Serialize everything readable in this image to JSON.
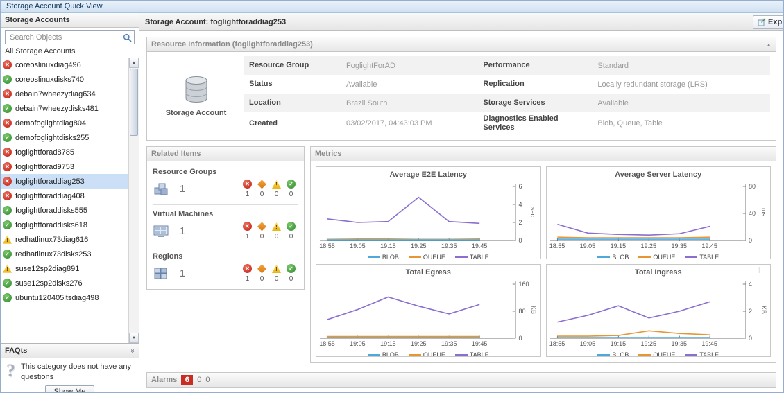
{
  "window": {
    "title": "Storage Account Quick View"
  },
  "sidebar": {
    "title": "Storage Accounts",
    "search": {
      "placeholder": "Search Objects"
    },
    "list_header": "All Storage Accounts",
    "accounts": [
      {
        "name": "coreoslinuxdiag496",
        "status": "error"
      },
      {
        "name": "coreoslinuxdisks740",
        "status": "ok"
      },
      {
        "name": "debain7wheezydiag634",
        "status": "error"
      },
      {
        "name": "debain7wheezydisks481",
        "status": "ok"
      },
      {
        "name": "demofoglightdiag804",
        "status": "error"
      },
      {
        "name": "demofoglightdisks255",
        "status": "ok"
      },
      {
        "name": "foglightforad8785",
        "status": "error"
      },
      {
        "name": "foglightforad9753",
        "status": "error"
      },
      {
        "name": "foglightforaddiag253",
        "status": "error",
        "selected": true
      },
      {
        "name": "foglightforaddiag408",
        "status": "error"
      },
      {
        "name": "foglightforaddisks555",
        "status": "ok"
      },
      {
        "name": "foglightforaddisks618",
        "status": "ok"
      },
      {
        "name": "redhatlinux73diag616",
        "status": "warn"
      },
      {
        "name": "redhatlinux73disks253",
        "status": "ok"
      },
      {
        "name": "suse12sp2diag891",
        "status": "warn"
      },
      {
        "name": "suse12sp2disks276",
        "status": "ok"
      },
      {
        "name": "ubuntu120405ltsdiag498",
        "status": "ok"
      }
    ],
    "faqts": {
      "title": "FAQts",
      "message": "This category does not have any questions",
      "show_me_button": "Show Me"
    }
  },
  "main": {
    "title": "Storage Account: foglightforaddiag253",
    "explore_button": "Exp",
    "resource_info": {
      "title": "Resource Information (foglightforaddiag253)",
      "icon_label": "Storage Account",
      "rows": [
        {
          "label1": "Resource Group",
          "value1": "FoglightForAD",
          "label2": "Performance",
          "value2": "Standard"
        },
        {
          "label1": "Status",
          "value1": "Available",
          "label2": "Replication",
          "value2": "Locally redundant storage (LRS)"
        },
        {
          "label1": "Location",
          "value1": "Brazil South",
          "label2": "Storage Services",
          "value2": "Available"
        },
        {
          "label1": "Created",
          "value1": "03/02/2017, 04:43:03 PM",
          "label2": "Diagnostics Enabled Services",
          "value2": "Blob, Queue, Table"
        }
      ]
    },
    "related_items": {
      "title": "Related Items",
      "severity_order": [
        "fatal",
        "critical",
        "warning",
        "normal"
      ],
      "groups": [
        {
          "label": "Resource Groups",
          "icon": "resource-group",
          "count": "1",
          "status_counts": [
            "1",
            "0",
            "0",
            "0"
          ]
        },
        {
          "label": "Virtual Machines",
          "icon": "virtual-machine",
          "count": "1",
          "status_counts": [
            "1",
            "0",
            "0",
            "0"
          ]
        },
        {
          "label": "Regions",
          "icon": "region",
          "count": "1",
          "status_counts": [
            "1",
            "0",
            "0",
            "0"
          ]
        }
      ]
    },
    "metrics_title": "Metrics",
    "alarms": {
      "title": "Alarms",
      "counts": [
        {
          "value": "6",
          "severity": "fatal"
        },
        {
          "value": "0",
          "severity": "none"
        },
        {
          "value": "0",
          "severity": "none"
        }
      ]
    }
  },
  "colors": {
    "blob": "#4fa8dc",
    "queue": "#e89632",
    "table": "#8a6fd0",
    "selected_row": "#cbe0f7",
    "alarm_badge": "#c92c23"
  },
  "chart_data": [
    {
      "type": "line",
      "title": "Average E2E Latency",
      "ylabel": "sec",
      "ylim": [
        0,
        6
      ],
      "yticks": [
        0,
        2,
        4,
        6
      ],
      "x": [
        "18:55",
        "19:05",
        "19:15",
        "19:25",
        "19:35",
        "19:45"
      ],
      "series": [
        {
          "name": "BLOB",
          "color": "#4fa8dc",
          "values": [
            0.08,
            0.08,
            0.08,
            0.08,
            0.08,
            0.08
          ]
        },
        {
          "name": "QUEUE",
          "color": "#e89632",
          "values": [
            0.25,
            0.22,
            0.22,
            0.25,
            0.25,
            0.22
          ]
        },
        {
          "name": "TABLE",
          "color": "#8a6fd0",
          "values": [
            2.4,
            2.0,
            2.1,
            4.8,
            2.1,
            1.9
          ]
        }
      ],
      "legend_position": "bottom",
      "grid": false
    },
    {
      "type": "line",
      "title": "Average Server Latency",
      "ylabel": "ms",
      "ylim": [
        0,
        80
      ],
      "yticks": [
        0,
        40,
        80
      ],
      "x": [
        "18:55",
        "19:05",
        "19:15",
        "19:25",
        "19:35",
        "19:45"
      ],
      "series": [
        {
          "name": "BLOB",
          "color": "#4fa8dc",
          "values": [
            2,
            2,
            2,
            2,
            2,
            2
          ]
        },
        {
          "name": "QUEUE",
          "color": "#e89632",
          "values": [
            5,
            4,
            4,
            4,
            4,
            5
          ]
        },
        {
          "name": "TABLE",
          "color": "#8a6fd0",
          "values": [
            24,
            11,
            9,
            8,
            10,
            21
          ]
        }
      ],
      "legend_position": "bottom",
      "grid": false
    },
    {
      "type": "line",
      "title": "Total Egress",
      "ylabel": "KB",
      "ylim": [
        0,
        160
      ],
      "yticks": [
        0,
        80,
        160
      ],
      "x": [
        "18:55",
        "19:05",
        "19:15",
        "19:25",
        "19:35",
        "19:45"
      ],
      "series": [
        {
          "name": "BLOB",
          "color": "#4fa8dc",
          "values": [
            2,
            2,
            2,
            2,
            2,
            2
          ]
        },
        {
          "name": "QUEUE",
          "color": "#e89632",
          "values": [
            5,
            5,
            5,
            5,
            5,
            5
          ]
        },
        {
          "name": "TABLE",
          "color": "#8a6fd0",
          "values": [
            55,
            85,
            122,
            95,
            72,
            100
          ]
        }
      ],
      "legend_position": "bottom",
      "grid": false
    },
    {
      "type": "line",
      "title": "Total Ingress",
      "ylabel": "KB",
      "ylim": [
        0,
        4
      ],
      "yticks": [
        0,
        2,
        4
      ],
      "x": [
        "18:55",
        "19:05",
        "19:15",
        "19:25",
        "19:35",
        "19:45"
      ],
      "options_icon": true,
      "series": [
        {
          "name": "BLOB",
          "color": "#4fa8dc",
          "values": [
            0.05,
            0.05,
            0.05,
            0.05,
            0.05,
            0.05
          ]
        },
        {
          "name": "QUEUE",
          "color": "#e89632",
          "values": [
            0.15,
            0.15,
            0.2,
            0.55,
            0.35,
            0.25
          ]
        },
        {
          "name": "TABLE",
          "color": "#8a6fd0",
          "values": [
            1.2,
            1.7,
            2.4,
            1.5,
            2.0,
            2.7
          ]
        }
      ],
      "legend_position": "bottom",
      "grid": false
    }
  ]
}
